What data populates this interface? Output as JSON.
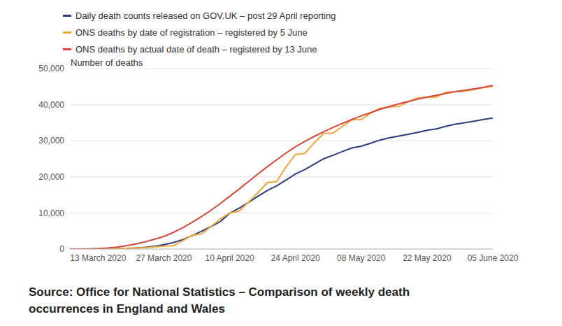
{
  "chart_data": {
    "type": "line",
    "y_label": "Number of deaths",
    "caption": "Source: Office for National Statistics – Comparison of weekly death occurrences in England and Wales",
    "categories": [
      null,
      null,
      null,
      "13 March 2020",
      null,
      null,
      null,
      null,
      null,
      null,
      "27 March 2020",
      null,
      null,
      null,
      null,
      null,
      null,
      "10 April 2020",
      null,
      null,
      null,
      null,
      null,
      null,
      "24 April 2020",
      null,
      null,
      null,
      null,
      null,
      null,
      "08 May 2020",
      null,
      null,
      null,
      null,
      null,
      null,
      "22 May 2020",
      null,
      null,
      null,
      null,
      null,
      null,
      "05 June 2020"
    ],
    "series": [
      {
        "name": "Daily death counts released on GOV.UK – post 29 April reporting",
        "color": "#2b3d7c",
        "values": [
          0,
          5,
          10,
          20,
          50,
          100,
          200,
          300,
          500,
          800,
          1200,
          1800,
          2600,
          3700,
          4900,
          6200,
          7600,
          9900,
          11300,
          12900,
          14600,
          16200,
          17500,
          19100,
          20800,
          22000,
          23500,
          25000,
          26000,
          27000,
          28000,
          28500,
          29300,
          30200,
          30800,
          31300,
          31800,
          32300,
          32900,
          33300,
          34000,
          34600,
          35000,
          35400,
          35900,
          36300
        ]
      },
      {
        "name": "ONS deaths by date of registration – registered by 5 June",
        "color": "#f0a63e",
        "values": [
          0,
          0,
          10,
          30,
          60,
          120,
          200,
          300,
          400,
          600,
          800,
          900,
          2300,
          3800,
          4200,
          6200,
          8300,
          10000,
          10500,
          13000,
          15600,
          18400,
          18700,
          22800,
          26200,
          26500,
          29400,
          32000,
          32100,
          34000,
          35800,
          35900,
          37600,
          39000,
          39400,
          39500,
          40800,
          41900,
          42000,
          42100,
          43400,
          43600,
          43700,
          44200,
          44700,
          45100
        ]
      },
      {
        "name": "ONS deaths by actual date of death – registered by 13 June",
        "color": "#d5463c",
        "values": [
          0,
          20,
          60,
          150,
          300,
          550,
          900,
          1400,
          2000,
          2700,
          3500,
          4600,
          5900,
          7400,
          9000,
          10700,
          12600,
          14600,
          16600,
          18700,
          20800,
          22800,
          24700,
          26600,
          28300,
          29800,
          31200,
          32500,
          33700,
          34800,
          35900,
          36900,
          37800,
          38700,
          39500,
          40200,
          40900,
          41500,
          42100,
          42600,
          43100,
          43600,
          44000,
          44400,
          44800,
          45300
        ]
      }
    ],
    "ylim": [
      0,
      50000
    ],
    "yticks": [
      0,
      {
        "value": 10000,
        "label": "10,000"
      },
      {
        "value": 20000,
        "label": "20,000"
      },
      {
        "value": 30000,
        "label": "30,000"
      },
      {
        "value": 40000,
        "label": "40,000"
      },
      {
        "value": 50000,
        "label": "50,000"
      }
    ],
    "grid": true
  }
}
